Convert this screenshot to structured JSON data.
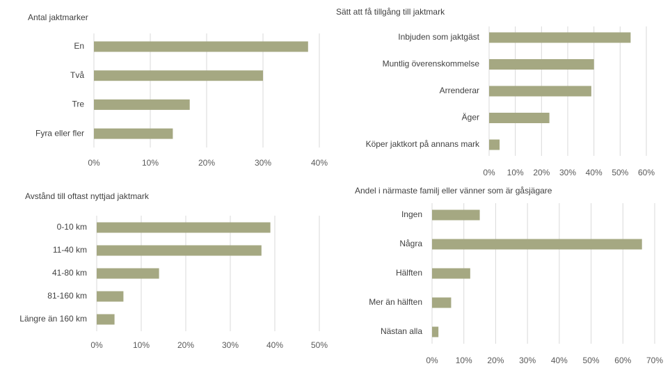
{
  "chart_data": [
    {
      "type": "bar",
      "title": "Antal jaktmarker",
      "categories": [
        "En",
        "Två",
        "Tre",
        "Fyra eller fler"
      ],
      "values": [
        38,
        30,
        17,
        14
      ],
      "color": "#a5a882",
      "xlim": [
        0,
        40
      ],
      "xticks": [
        {
          "value": 0,
          "label": "0%"
        },
        {
          "value": 10,
          "label": "10%"
        },
        {
          "value": 20,
          "label": "20%"
        },
        {
          "value": 30,
          "label": "30%"
        },
        {
          "value": 40,
          "label": "40%"
        }
      ],
      "grid": true
    },
    {
      "type": "bar",
      "title": "Sätt att få tillgång till jaktmark",
      "categories": [
        "Inbjuden som jaktgäst",
        "Muntlig överenskommelse",
        "Arrenderar",
        "Äger",
        "Köper jaktkort på annans mark"
      ],
      "values": [
        54,
        40,
        39,
        23,
        4
      ],
      "color": "#a5a882",
      "xlim": [
        0,
        60
      ],
      "xticks": [
        {
          "value": 0,
          "label": "0%"
        },
        {
          "value": 10,
          "label": "10%"
        },
        {
          "value": 20,
          "label": "20%"
        },
        {
          "value": 30,
          "label": "30%"
        },
        {
          "value": 40,
          "label": "40%"
        },
        {
          "value": 50,
          "label": "50%"
        },
        {
          "value": 60,
          "label": "60%"
        }
      ],
      "grid": true
    },
    {
      "type": "bar",
      "title": "Avstånd till oftast nyttjad jaktmark",
      "categories": [
        "0-10 km",
        "11-40 km",
        "41-80 km",
        "81-160 km",
        "Längre än 160 km"
      ],
      "values": [
        39,
        37,
        14,
        6,
        4
      ],
      "color": "#a5a882",
      "xlim": [
        0,
        50
      ],
      "xticks": [
        {
          "value": 0,
          "label": "0%"
        },
        {
          "value": 10,
          "label": "10%"
        },
        {
          "value": 20,
          "label": "20%"
        },
        {
          "value": 30,
          "label": "30%"
        },
        {
          "value": 40,
          "label": "40%"
        },
        {
          "value": 50,
          "label": "50%"
        }
      ],
      "grid": true
    },
    {
      "type": "bar",
      "title": "Andel i närmaste familj eller vänner som är gåsjägare",
      "categories": [
        "Ingen",
        "Några",
        "Hälften",
        "Mer än hälften",
        "Nästan alla"
      ],
      "values": [
        15,
        66,
        12,
        6,
        2
      ],
      "color": "#a5a882",
      "xlim": [
        0,
        70
      ],
      "xticks": [
        {
          "value": 0,
          "label": "0%"
        },
        {
          "value": 10,
          "label": "10%"
        },
        {
          "value": 20,
          "label": "20%"
        },
        {
          "value": 30,
          "label": "30%"
        },
        {
          "value": 40,
          "label": "40%"
        },
        {
          "value": 50,
          "label": "50%"
        },
        {
          "value": 60,
          "label": "60%"
        },
        {
          "value": 70,
          "label": "70%"
        }
      ],
      "grid": true
    }
  ]
}
